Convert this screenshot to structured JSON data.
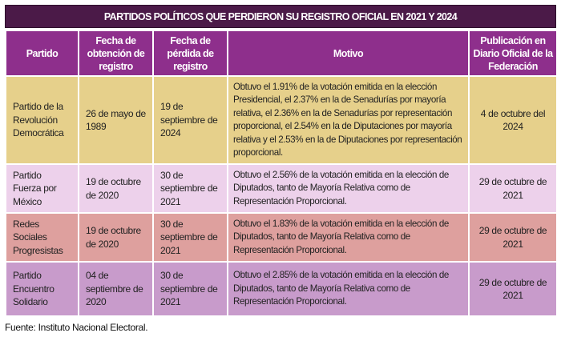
{
  "title": "PARTIDOS POLÍTICOS QUE PERDIERON SU REGISTRO OFICIAL EN 2021 Y 2024",
  "headers": [
    "Partido",
    "Fecha de obtención de registro",
    "Fecha de pérdida de registro",
    "Motivo",
    "Publicación en Diario Oficial de la Federación"
  ],
  "rows": [
    {
      "partido": "Partido de la Revolución Democrática",
      "obtencion": "26 de mayo de 1989",
      "perdida": "19 de septiembre de 2024",
      "motivo": "Obtuvo el 1.91% de la votación emitida en la elección Presidencial, el 2.37% en la de Senadurías por mayoría relativa, el 2.36% en la de Senadurías por representación proporcional, el 2.54% en la de Diputaciones por mayoría relativa y el 2.53% en la de Diputaciones por representación proporcional.",
      "publicacion": "4 de octubre del 2024"
    },
    {
      "partido": "Partido Fuerza por México",
      "obtencion": "19 de octubre de 2020",
      "perdida": "30 de septiembre de 2021",
      "motivo": "Obtuvo el 2.56% de la votación emitida en la elección de Diputados, tanto de Mayoría Relativa como de Representación Proporcional.",
      "publicacion": "29 de octubre de 2021"
    },
    {
      "partido": "Redes Sociales Progresistas",
      "obtencion": "19 de octubre de 2020",
      "perdida": "30 de septiembre de 2021",
      "motivo": "Obtuvo el 1.83% de la votación emitida en la elección de Diputados, tanto de Mayoría Relativa como de Representación Proporcional.",
      "publicacion": "29 de octubre de 2021"
    },
    {
      "partido": "Partido Encuentro Solidario",
      "obtencion": "04 de septiembre de 2020",
      "perdida": "30 de septiembre de 2021",
      "motivo": "Obtuvo el 2.85% de la votación emitida en la elección de Diputados, tanto de Mayoría Relativa como de Representación Proporcional.",
      "publicacion": "29 de octubre de 2021"
    }
  ],
  "source": "Fuente: Instituto Nacional Electoral."
}
